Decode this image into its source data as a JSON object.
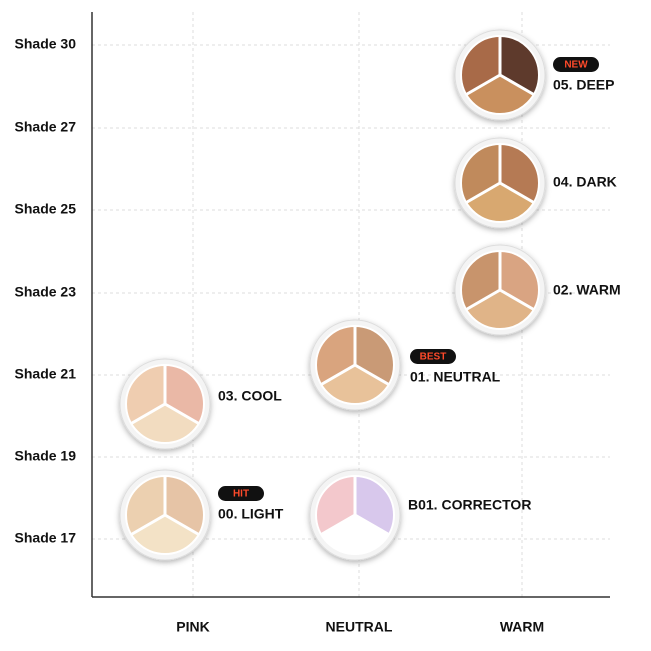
{
  "y_labels": [
    "Shade 30",
    "Shade 27",
    "Shade 25",
    "Shade 23",
    "Shade 21",
    "Shade 19",
    "Shade 17"
  ],
  "x_labels": [
    "PINK",
    "NEUTRAL",
    "WARM"
  ],
  "products": [
    {
      "name": "05. DEEP",
      "badge": "NEW",
      "colors": [
        "#a86a48",
        "#5e3a2c",
        "#c9905e"
      ]
    },
    {
      "name": "04. DARK",
      "colors": [
        "#c08a5c",
        "#b57a54",
        "#d8a870"
      ]
    },
    {
      "name": "02. WARM",
      "colors": [
        "#c8946c",
        "#d9a482",
        "#e0b488"
      ]
    },
    {
      "name": "01. NEUTRAL",
      "badge": "BEST",
      "colors": [
        "#d9a47e",
        "#c99a76",
        "#e8c29a"
      ]
    },
    {
      "name": "03. COOL",
      "colors": [
        "#efcdb0",
        "#eab8a6",
        "#f2dcc0"
      ]
    },
    {
      "name": "00. LIGHT",
      "badge": "HIT",
      "colors": [
        "#ecd0b0",
        "#e6c4a6",
        "#f3e2c6"
      ]
    },
    {
      "name": "B01. CORRECTOR",
      "colors": [
        "#f3c8cc",
        "#d8c8ec",
        "#ffffff"
      ]
    }
  ]
}
